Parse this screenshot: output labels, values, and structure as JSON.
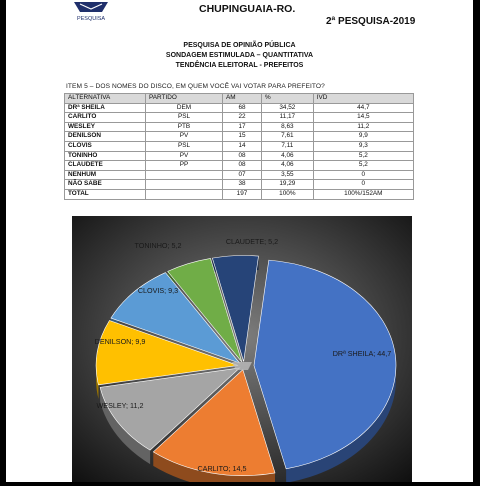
{
  "header": {
    "city": "CHUPINGUAIA-RO.",
    "poll_label": "2ª PESQUISA-2019",
    "logo_text": "PESQUISA"
  },
  "titles": {
    "line1": "PESQUISA DE OPINIÃO PÚBLICA",
    "line2": "SONDAGEM ESTIMULADA – QUANTITATIVA",
    "line3": "TENDÊNCIA ELEITORAL - PREFEITOS"
  },
  "question": "ITEM 5 – DOS NOMES DO DISCO, EM QUEM VOCÊ VAI VOTAR PARA PREFEITO?",
  "table": {
    "columns": [
      "ALTERNATIVA",
      "PARTIDO",
      "AM",
      "%",
      "IVD"
    ],
    "rows": [
      {
        "name": "DRª SHEILA",
        "party": "DEM",
        "am": "68",
        "pct": "34,52",
        "ivd": "44,7"
      },
      {
        "name": "CARLITO",
        "party": "PSL",
        "am": "22",
        "pct": "11,17",
        "ivd": "14,5"
      },
      {
        "name": "WESLEY",
        "party": "PTB",
        "am": "17",
        "pct": "8,63",
        "ivd": "11,2"
      },
      {
        "name": "DENILSON",
        "party": "PV",
        "am": "15",
        "pct": "7,61",
        "ivd": "9,9"
      },
      {
        "name": "CLOVIS",
        "party": "PSL",
        "am": "14",
        "pct": "7,11",
        "ivd": "9,3"
      },
      {
        "name": "TONINHO",
        "party": "PV",
        "am": "08",
        "pct": "4,06",
        "ivd": "5,2"
      },
      {
        "name": "CLAUDETE",
        "party": "PP",
        "am": "08",
        "pct": "4,06",
        "ivd": "5,2"
      },
      {
        "name": "NENHUM",
        "party": "",
        "am": "07",
        "pct": "3,55",
        "ivd": "0"
      },
      {
        "name": "NÃO SABE",
        "party": "",
        "am": "38",
        "pct": "19,29",
        "ivd": "0"
      },
      {
        "name": "TOTAL",
        "party": "",
        "am": "197",
        "pct": "100%",
        "ivd": "100%/152AM"
      }
    ]
  },
  "chart_data": {
    "type": "pie",
    "labels": [
      "DRª SHEILA",
      "CARLITO",
      "WESLEY",
      "DENILSON",
      "CLOVIS",
      "TONINHO",
      "CLAUDETE"
    ],
    "values": [
      44.7,
      14.5,
      11.2,
      9.9,
      9.3,
      5.2,
      5.2
    ],
    "colors": [
      "#4472c4",
      "#ed7d31",
      "#a5a5a5",
      "#ffc000",
      "#5b9bd5",
      "#70ad47",
      "#264478"
    ],
    "data_labels": [
      "DRª SHEILA; 44,7",
      "CARLITO; 14,5",
      "WESLEY; 11,2",
      "DENILSON; 9,9",
      "CLOVIS; 9,3",
      "TONINHO; 5,2",
      "CLAUDETE; 5,2"
    ],
    "style": "3d-exploded",
    "background": "dark-gradient"
  }
}
